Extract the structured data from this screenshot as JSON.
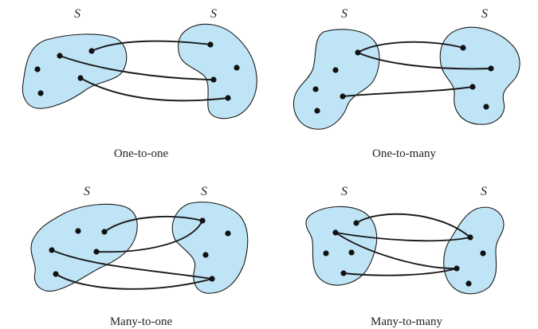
{
  "panels": [
    {
      "caption": "One-to-one",
      "left_set_label": "S",
      "right_set_label": "S"
    },
    {
      "caption": "One-to-many",
      "left_set_label": "S",
      "right_set_label": "S"
    },
    {
      "caption": "Many-to-one",
      "left_set_label": "S",
      "right_set_label": "S"
    },
    {
      "caption": "Many-to-many",
      "left_set_label": "S",
      "right_set_label": "S"
    }
  ],
  "colors": {
    "set_fill": "#bfe4f5",
    "outline": "#1a1a1a"
  }
}
